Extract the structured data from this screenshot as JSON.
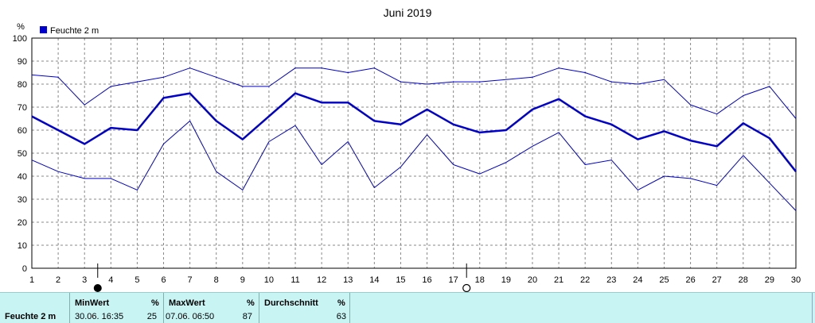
{
  "chart_data": {
    "type": "line",
    "title": "Juni 2019",
    "ylabel": "%",
    "ylim": [
      0,
      100
    ],
    "yticks": [
      "0",
      "10",
      "20",
      "30",
      "40",
      "50",
      "60",
      "70",
      "80",
      "90",
      "100"
    ],
    "x": [
      "1",
      "2",
      "3",
      "4",
      "5",
      "6",
      "7",
      "8",
      "9",
      "10",
      "11",
      "12",
      "13",
      "14",
      "15",
      "16",
      "17",
      "18",
      "19",
      "20",
      "21",
      "22",
      "23",
      "24",
      "25",
      "26",
      "27",
      "28",
      "29",
      "30"
    ],
    "legend": "Feuchte  2 m",
    "grid": true,
    "series": [
      {
        "name": "max",
        "values": [
          84,
          83,
          71,
          79,
          81,
          83,
          87,
          83,
          79,
          79,
          87,
          87,
          85,
          87,
          81,
          80,
          81,
          81,
          82,
          83,
          87,
          85,
          81,
          80,
          82,
          71,
          67,
          75,
          79,
          65
        ]
      },
      {
        "name": "mittel",
        "values": [
          66,
          60,
          54,
          61,
          60,
          74,
          76,
          64,
          56,
          66,
          76,
          72,
          72,
          64,
          62.5,
          69,
          62.5,
          59,
          60,
          69,
          73.5,
          66,
          62.5,
          56,
          59.5,
          55.5,
          53,
          63,
          56.5,
          42
        ]
      },
      {
        "name": "min",
        "values": [
          47,
          42,
          39,
          39,
          34,
          54,
          64,
          42,
          34,
          55,
          62,
          45,
          55,
          35,
          44,
          58,
          45,
          41,
          46,
          53,
          59,
          45,
          47,
          34,
          40,
          39,
          36,
          49,
          37,
          25
        ]
      }
    ],
    "moon_symbols": [
      {
        "type": "new-moon",
        "day_position": 3.5
      },
      {
        "type": "full-moon",
        "day_position": 17.5
      }
    ]
  },
  "footer": {
    "label": "Feuchte   2 m",
    "min": {
      "header": "MinWert",
      "unit": "%",
      "datetime": "30.06.  16:35",
      "value": "25"
    },
    "max": {
      "header": "MaxWert",
      "unit": "%",
      "datetime": "07.06.  06:50",
      "value": "87"
    },
    "avg": {
      "header": "Durchschnitt",
      "unit": "%",
      "value": "63"
    }
  },
  "colors": {
    "series": "#0000cc",
    "footer_bg": "#c8f4f4",
    "grid": "#888888"
  }
}
